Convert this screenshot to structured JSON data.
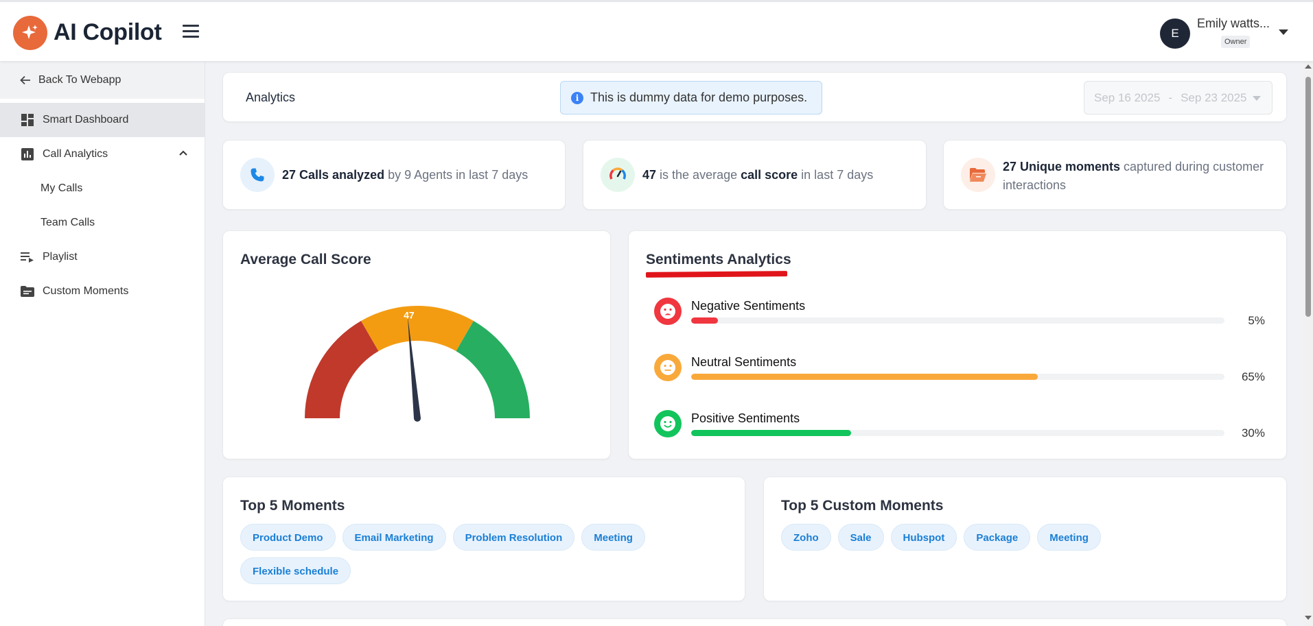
{
  "app": {
    "name": "AI Copilot",
    "brand_color": "#e8693a"
  },
  "user": {
    "initial": "E",
    "name": "Emily watts...",
    "role": "Owner"
  },
  "sidebar": {
    "back_label": "Back To Webapp",
    "items": [
      {
        "label": "Smart Dashboard",
        "icon": "dashboard-icon",
        "active": true
      },
      {
        "label": "Call Analytics",
        "icon": "bar-chart-icon",
        "expanded": true
      },
      {
        "label": "My Calls",
        "sub": true
      },
      {
        "label": "Team Calls",
        "sub": true
      },
      {
        "label": "Playlist",
        "icon": "playlist-icon"
      },
      {
        "label": "Custom Moments",
        "icon": "folder-icon"
      }
    ]
  },
  "header": {
    "title": "Analytics",
    "notice": "This is dummy data for demo purposes.",
    "date_from": "Sep 16 2025",
    "date_sep": "-",
    "date_to": "Sep 23 2025"
  },
  "stats": {
    "calls": {
      "count": "27 Calls analyzed",
      "rest": " by 9 Agents in last 7 days"
    },
    "score": {
      "value": "47",
      "mid": " is the average ",
      "key": "call score",
      "rest": " in last 7 days"
    },
    "moments": {
      "count": "27 Unique moments",
      "rest": " captured during customer interactions"
    }
  },
  "call_score": {
    "title": "Average Call Score",
    "value": 47,
    "value_label": "47",
    "max": 100,
    "zone_colors": [
      "#c0392b",
      "#f39c12",
      "#27ae60"
    ]
  },
  "sentiments": {
    "title": "Sentiments Analytics",
    "rows": [
      {
        "label": "Negative Sentiments",
        "percent": 5,
        "percent_label": "5%",
        "color": "#f0363f"
      },
      {
        "label": "Neutral Sentiments",
        "percent": 65,
        "percent_label": "65%",
        "color": "#f9a93a"
      },
      {
        "label": "Positive Sentiments",
        "percent": 30,
        "percent_label": "30%",
        "color": "#12c45c"
      }
    ]
  },
  "top_moments": {
    "title": "Top 5 Moments",
    "chips": [
      "Product Demo",
      "Email Marketing",
      "Problem Resolution",
      "Meeting",
      "Flexible schedule"
    ]
  },
  "top_custom_moments": {
    "title": "Top 5 Custom Moments",
    "chips": [
      "Zoho",
      "Sale",
      "Hubspot",
      "Package",
      "Meeting"
    ]
  }
}
